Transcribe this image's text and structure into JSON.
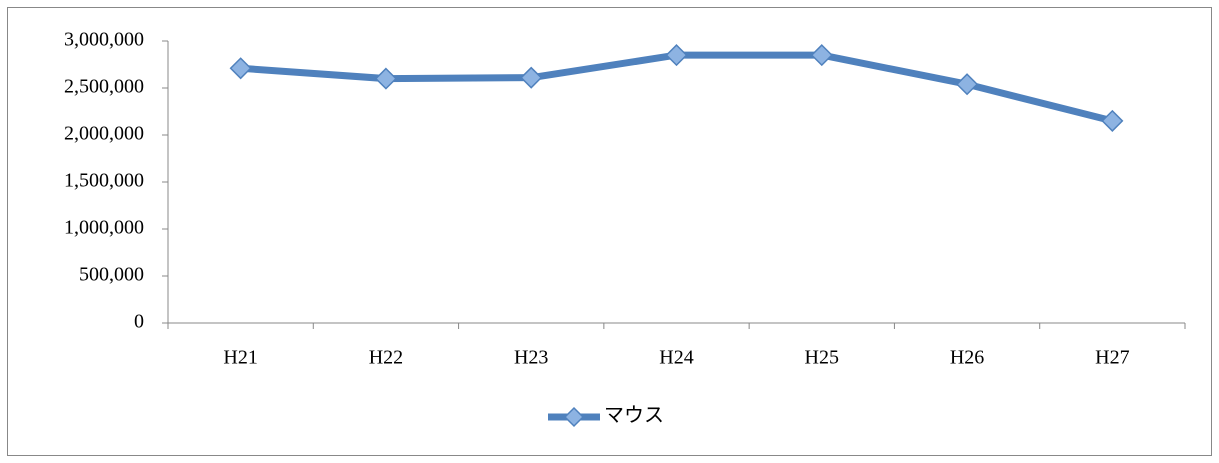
{
  "chart_data": {
    "type": "line",
    "categories": [
      "H21",
      "H22",
      "H23",
      "H24",
      "H25",
      "H26",
      "H27"
    ],
    "series": [
      {
        "name": "マウス",
        "color": "#4f81bd",
        "marker_fill": "#8db3e2",
        "values": [
          2710000,
          2600000,
          2610000,
          2850000,
          2850000,
          2540000,
          2150000
        ]
      }
    ],
    "ylim": [
      0,
      3000000
    ],
    "yticks": [
      0,
      {
        "value": 500000,
        "label": "500,000"
      },
      {
        "value": 1000000,
        "label": "1,000,000"
      },
      {
        "value": 1500000,
        "label": "1,500,000"
      },
      {
        "value": 2000000,
        "label": "2,000,000"
      },
      {
        "value": 2500000,
        "label": "2,500,000"
      },
      {
        "value": 3000000,
        "label": "3,000,000"
      }
    ],
    "grid": false,
    "legend": "bottom"
  }
}
